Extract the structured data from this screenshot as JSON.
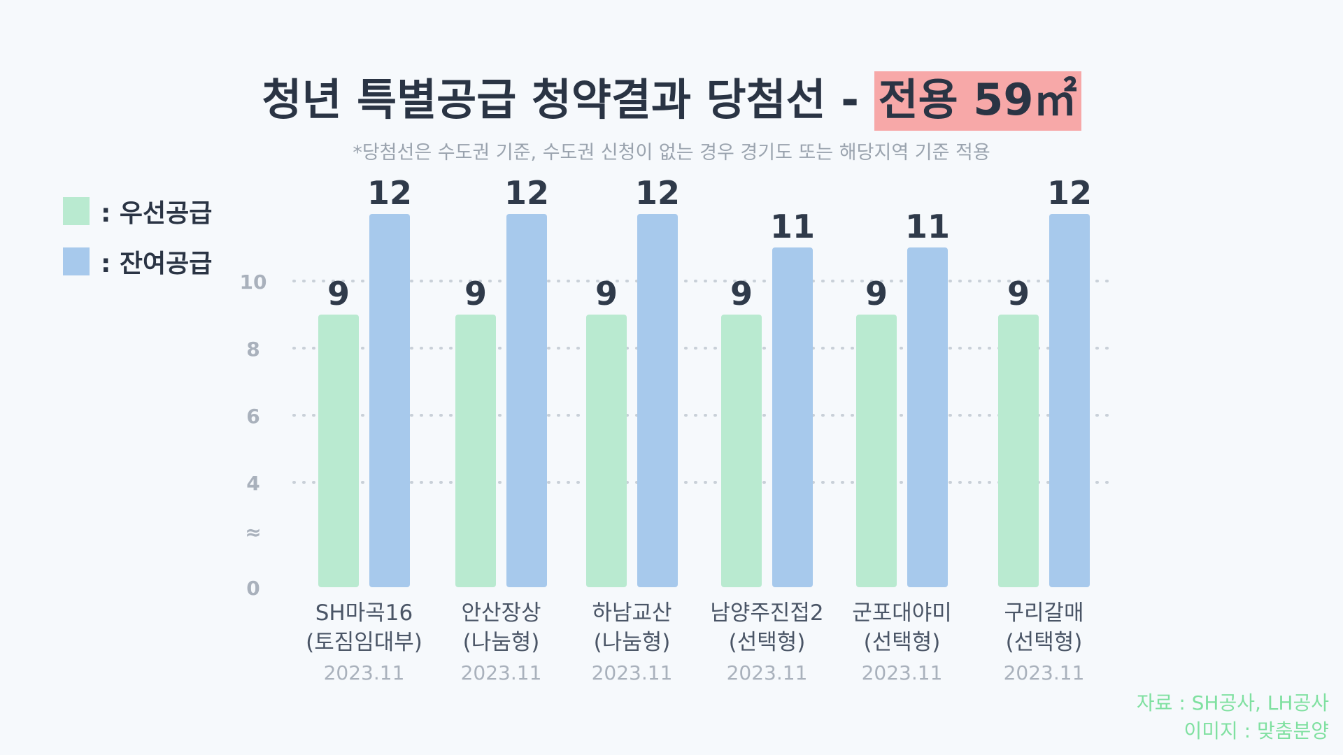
{
  "title": {
    "main": "청년 특별공급 청약결과 당첨선 - ",
    "highlight": "전용 59㎡"
  },
  "subtitle": "*당첨선은 수도권 기준, 수도권 신청이 없는 경우 경기도 또는 해당지역 기준 적용",
  "legend": [
    {
      "label": ": 우선공급",
      "color": "#b9ead0"
    },
    {
      "label": ": 잔여공급",
      "color": "#a7c9ec"
    }
  ],
  "source": {
    "data": "자료 : SH공사, LH공사",
    "image": "이미지 : 맞춤분양"
  },
  "chart_data": {
    "type": "bar",
    "title": "청년 특별공급 청약결과 당첨선 - 전용 59㎡",
    "xlabel": "",
    "ylabel": "",
    "ylim": [
      0,
      12
    ],
    "yticks": [
      "0",
      "≈",
      "4",
      "6",
      "8",
      "10"
    ],
    "grid": true,
    "legend_position": "top-left",
    "categories": [
      {
        "name": "SH마곡16",
        "type": "(토짐임대부)",
        "date": "2023.11"
      },
      {
        "name": "안산장상",
        "type": "(나눔형)",
        "date": "2023.11"
      },
      {
        "name": "하남교산",
        "type": "(나눔형)",
        "date": "2023.11"
      },
      {
        "name": "남양주진접2",
        "type": "(선택형)",
        "date": "2023.11"
      },
      {
        "name": "군포대야미",
        "type": "(선택형)",
        "date": "2023.11"
      },
      {
        "name": "구리갈매",
        "type": "(선택형)",
        "date": "2023.11"
      }
    ],
    "series": [
      {
        "name": "우선공급",
        "color": "#b9ead0",
        "values": [
          9,
          9,
          9,
          9,
          9,
          9
        ]
      },
      {
        "name": "잔여공급",
        "color": "#a7c9ec",
        "values": [
          12,
          12,
          12,
          11,
          11,
          12
        ]
      }
    ]
  }
}
